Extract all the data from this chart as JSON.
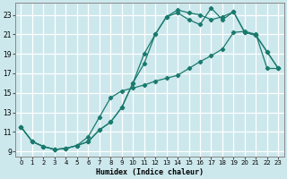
{
  "xlabel": "Humidex (Indice chaleur)",
  "bg_color": "#cce8ec",
  "grid_color": "#ffffff",
  "line_color": "#1a7a6e",
  "xlim": [
    -0.5,
    23.5
  ],
  "ylim": [
    8.5,
    24.2
  ],
  "xticks": [
    0,
    1,
    2,
    3,
    4,
    5,
    6,
    7,
    8,
    9,
    10,
    11,
    12,
    13,
    14,
    15,
    16,
    17,
    18,
    19,
    20,
    21,
    22,
    23
  ],
  "yticks": [
    9,
    11,
    13,
    15,
    17,
    19,
    21,
    23
  ],
  "line1_x": [
    0,
    1,
    2,
    3,
    4,
    5,
    6,
    7,
    8,
    9,
    10,
    11,
    12,
    13,
    14,
    15,
    16,
    17,
    18,
    19,
    20,
    21,
    22,
    23
  ],
  "line1_y": [
    11.5,
    10.0,
    9.5,
    9.2,
    9.3,
    9.6,
    10.0,
    11.2,
    12.0,
    13.5,
    16.0,
    19.0,
    21.0,
    22.8,
    23.5,
    23.2,
    23.0,
    22.5,
    22.8,
    23.3,
    21.2,
    20.9,
    19.2,
    17.5
  ],
  "line2_x": [
    0,
    1,
    2,
    3,
    4,
    5,
    6,
    7,
    8,
    9,
    10,
    11,
    12,
    13,
    14,
    15,
    16,
    17,
    18,
    19,
    20,
    21,
    22,
    23
  ],
  "line2_y": [
    11.5,
    10.0,
    9.5,
    9.2,
    9.3,
    9.6,
    10.0,
    11.2,
    12.0,
    13.5,
    16.0,
    18.0,
    21.0,
    22.8,
    23.2,
    22.5,
    22.0,
    23.7,
    22.5,
    23.3,
    21.2,
    20.9,
    19.2,
    17.5
  ],
  "line3_x": [
    0,
    1,
    2,
    3,
    4,
    5,
    6,
    7,
    8,
    9,
    10,
    11,
    12,
    13,
    14,
    15,
    16,
    17,
    18,
    19,
    20,
    21,
    22,
    23
  ],
  "line3_y": [
    11.5,
    10.0,
    9.5,
    9.2,
    9.3,
    9.6,
    10.5,
    12.5,
    14.5,
    15.2,
    15.5,
    15.8,
    16.2,
    16.5,
    16.8,
    17.5,
    18.2,
    18.8,
    19.5,
    21.2,
    21.3,
    21.0,
    17.5,
    17.5
  ]
}
